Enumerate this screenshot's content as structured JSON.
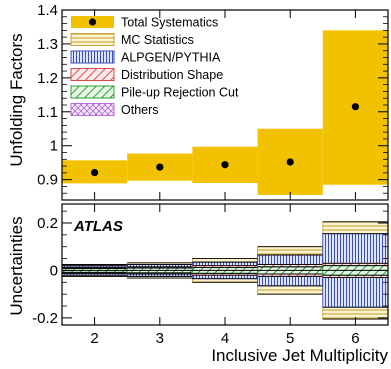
{
  "chart_data": {
    "type": "bar",
    "xlabel": "Inclusive Jet Multiplicity",
    "categories": [
      "2",
      "3",
      "4",
      "5",
      "6"
    ],
    "x": [
      2,
      3,
      4,
      5,
      6
    ],
    "top_panel": {
      "ylabel": "Unfolding Factors",
      "ylim": [
        0.84,
        1.4
      ],
      "yticks": [
        0.9,
        1.0,
        1.1,
        1.2,
        1.3,
        1.4
      ],
      "ytick_labels": [
        "0.9",
        "1",
        "1.1",
        "1.2",
        "1.3",
        "1.4"
      ],
      "series": [
        {
          "name": "Total Systematics",
          "kind": "point-with-band",
          "values": [
            0.921,
            0.937,
            0.944,
            0.952,
            1.115
          ],
          "band_low": [
            0.889,
            0.897,
            0.89,
            0.855,
            0.885
          ],
          "band_high": [
            0.957,
            0.977,
            0.997,
            1.05,
            1.34
          ]
        }
      ],
      "legend": {
        "position": "top-left",
        "entries": [
          {
            "name": "Total Systematics",
            "style": "solid",
            "color": "#f2c200"
          },
          {
            "name": "MC Statistics",
            "style": "hatch-horizontal",
            "color": "#c9a23a"
          },
          {
            "name": "ALPGEN/PYTHIA",
            "style": "hatch-vertical",
            "color": "#3a4fb8"
          },
          {
            "name": "Distribution Shape",
            "style": "hatch-diagonal",
            "color": "#d94a4a"
          },
          {
            "name": "Pile-up Rejection Cut",
            "style": "hatch-diagonal",
            "color": "#2f9e3a"
          },
          {
            "name": "Others",
            "style": "cross-hatch",
            "color": "#b56fd6"
          }
        ]
      }
    },
    "bottom_panel": {
      "ylabel": "Uncertainties",
      "ylim": [
        -0.23,
        0.28
      ],
      "yticks": [
        -0.2,
        0.0,
        0.2
      ],
      "ytick_labels": [
        "-0.2",
        "0",
        "0.2"
      ],
      "annotation": "ATLAS",
      "series": [
        {
          "name": "MC Statistics",
          "values": [
            0.025,
            0.032,
            0.05,
            0.1,
            0.205
          ]
        },
        {
          "name": "ALPGEN/PYTHIA",
          "values": [
            0.02,
            0.025,
            0.035,
            0.065,
            0.155
          ]
        },
        {
          "name": "Distribution Shape",
          "values": [
            0.013,
            0.015,
            0.02,
            0.025,
            0.03
          ]
        },
        {
          "name": "Pile-up Rejection Cut",
          "values": [
            0.008,
            0.01,
            0.012,
            0.015,
            0.02
          ]
        },
        {
          "name": "Others",
          "values": [
            0.01,
            0.012,
            0.012,
            0.015,
            0.02
          ]
        }
      ]
    },
    "colors": {
      "total": "#f2c200",
      "mc": "#c9a23a",
      "alpgen": "#3a4fb8",
      "shape": "#d94a4a",
      "pileup": "#2f9e3a",
      "others": "#b56fd6"
    }
  }
}
